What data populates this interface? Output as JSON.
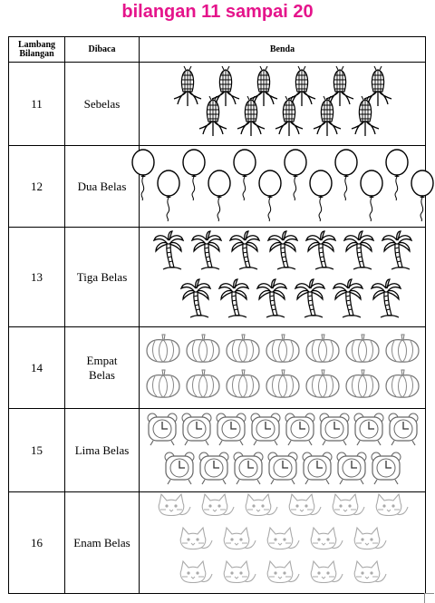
{
  "title": "bilangan 11 sampai 20",
  "table": {
    "headers": {
      "number": "Lambang\nBilangan",
      "read": "Dibaca",
      "objects": "Benda"
    },
    "rows": [
      {
        "number": "11",
        "read": "Sebelas",
        "object": "corn-icon",
        "count": 11
      },
      {
        "number": "12",
        "read": "Dua Belas",
        "object": "balloon-icon",
        "count": 12
      },
      {
        "number": "13",
        "read": "Tiga Belas",
        "object": "palm-tree-icon",
        "count": 13
      },
      {
        "number": "14",
        "read": "Empat\nBelas",
        "object": "pumpkin-icon",
        "count": 14
      },
      {
        "number": "15",
        "read": "Lima Belas",
        "object": "alarm-clock-icon",
        "count": 15
      },
      {
        "number": "16",
        "read": "Enam Belas",
        "object": "cat-icon",
        "count": 16
      }
    ]
  }
}
